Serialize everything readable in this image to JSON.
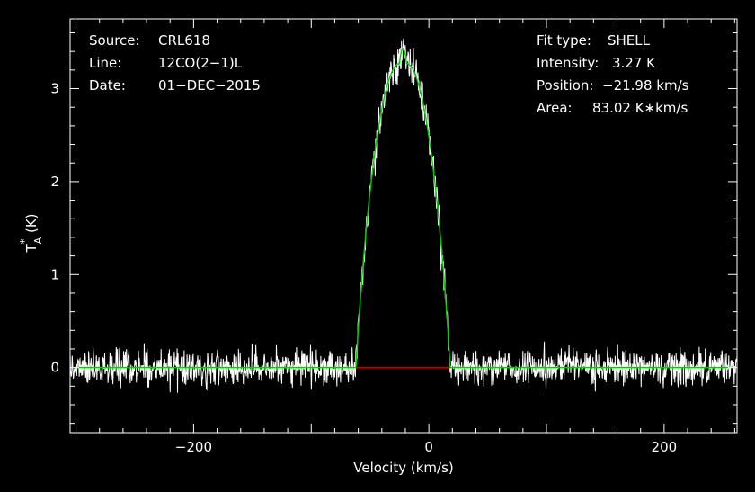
{
  "chart_data": {
    "type": "line",
    "xlabel": "Velocity (km/s)",
    "ylabel": "T",
    "ylabel_sup": "*",
    "ylabel_sub": "A",
    "ylabel_unit": " (K)",
    "xlim": [
      -305,
      262
    ],
    "ylim": [
      -0.7,
      3.75
    ],
    "xticks": [
      -200,
      0,
      200
    ],
    "xtick_labels": [
      "−200",
      "0",
      "200"
    ],
    "yticks": [
      0,
      1,
      2,
      3
    ],
    "ytick_labels": [
      "0",
      "1",
      "2",
      "3"
    ],
    "grid": false,
    "info_left": [
      {
        "key": "Source:",
        "value": "CRL618"
      },
      {
        "key": "Line:",
        "value": "12CO(2−1)L"
      },
      {
        "key": "Date:",
        "value": "01−DEC−2015"
      }
    ],
    "info_right": [
      {
        "key": "Fit type:",
        "value": "SHELL"
      },
      {
        "key": "Intensity:",
        "value": "3.27 K"
      },
      {
        "key": "Position:",
        "value": "−21.98 km/s"
      },
      {
        "key": "Area:",
        "value": "83.02 K∗km/s"
      }
    ],
    "fit": {
      "center": -21.98,
      "peak": 3.27,
      "half_width_base": 40,
      "half_width_top": 3,
      "curvature": 0.05
    },
    "noise_rms": 0.09,
    "colors": {
      "background": "#000000",
      "axes": "#ffffff",
      "spectrum": "#ffffff",
      "fit": "#00d000",
      "baseline_segment": "#c00000"
    }
  }
}
